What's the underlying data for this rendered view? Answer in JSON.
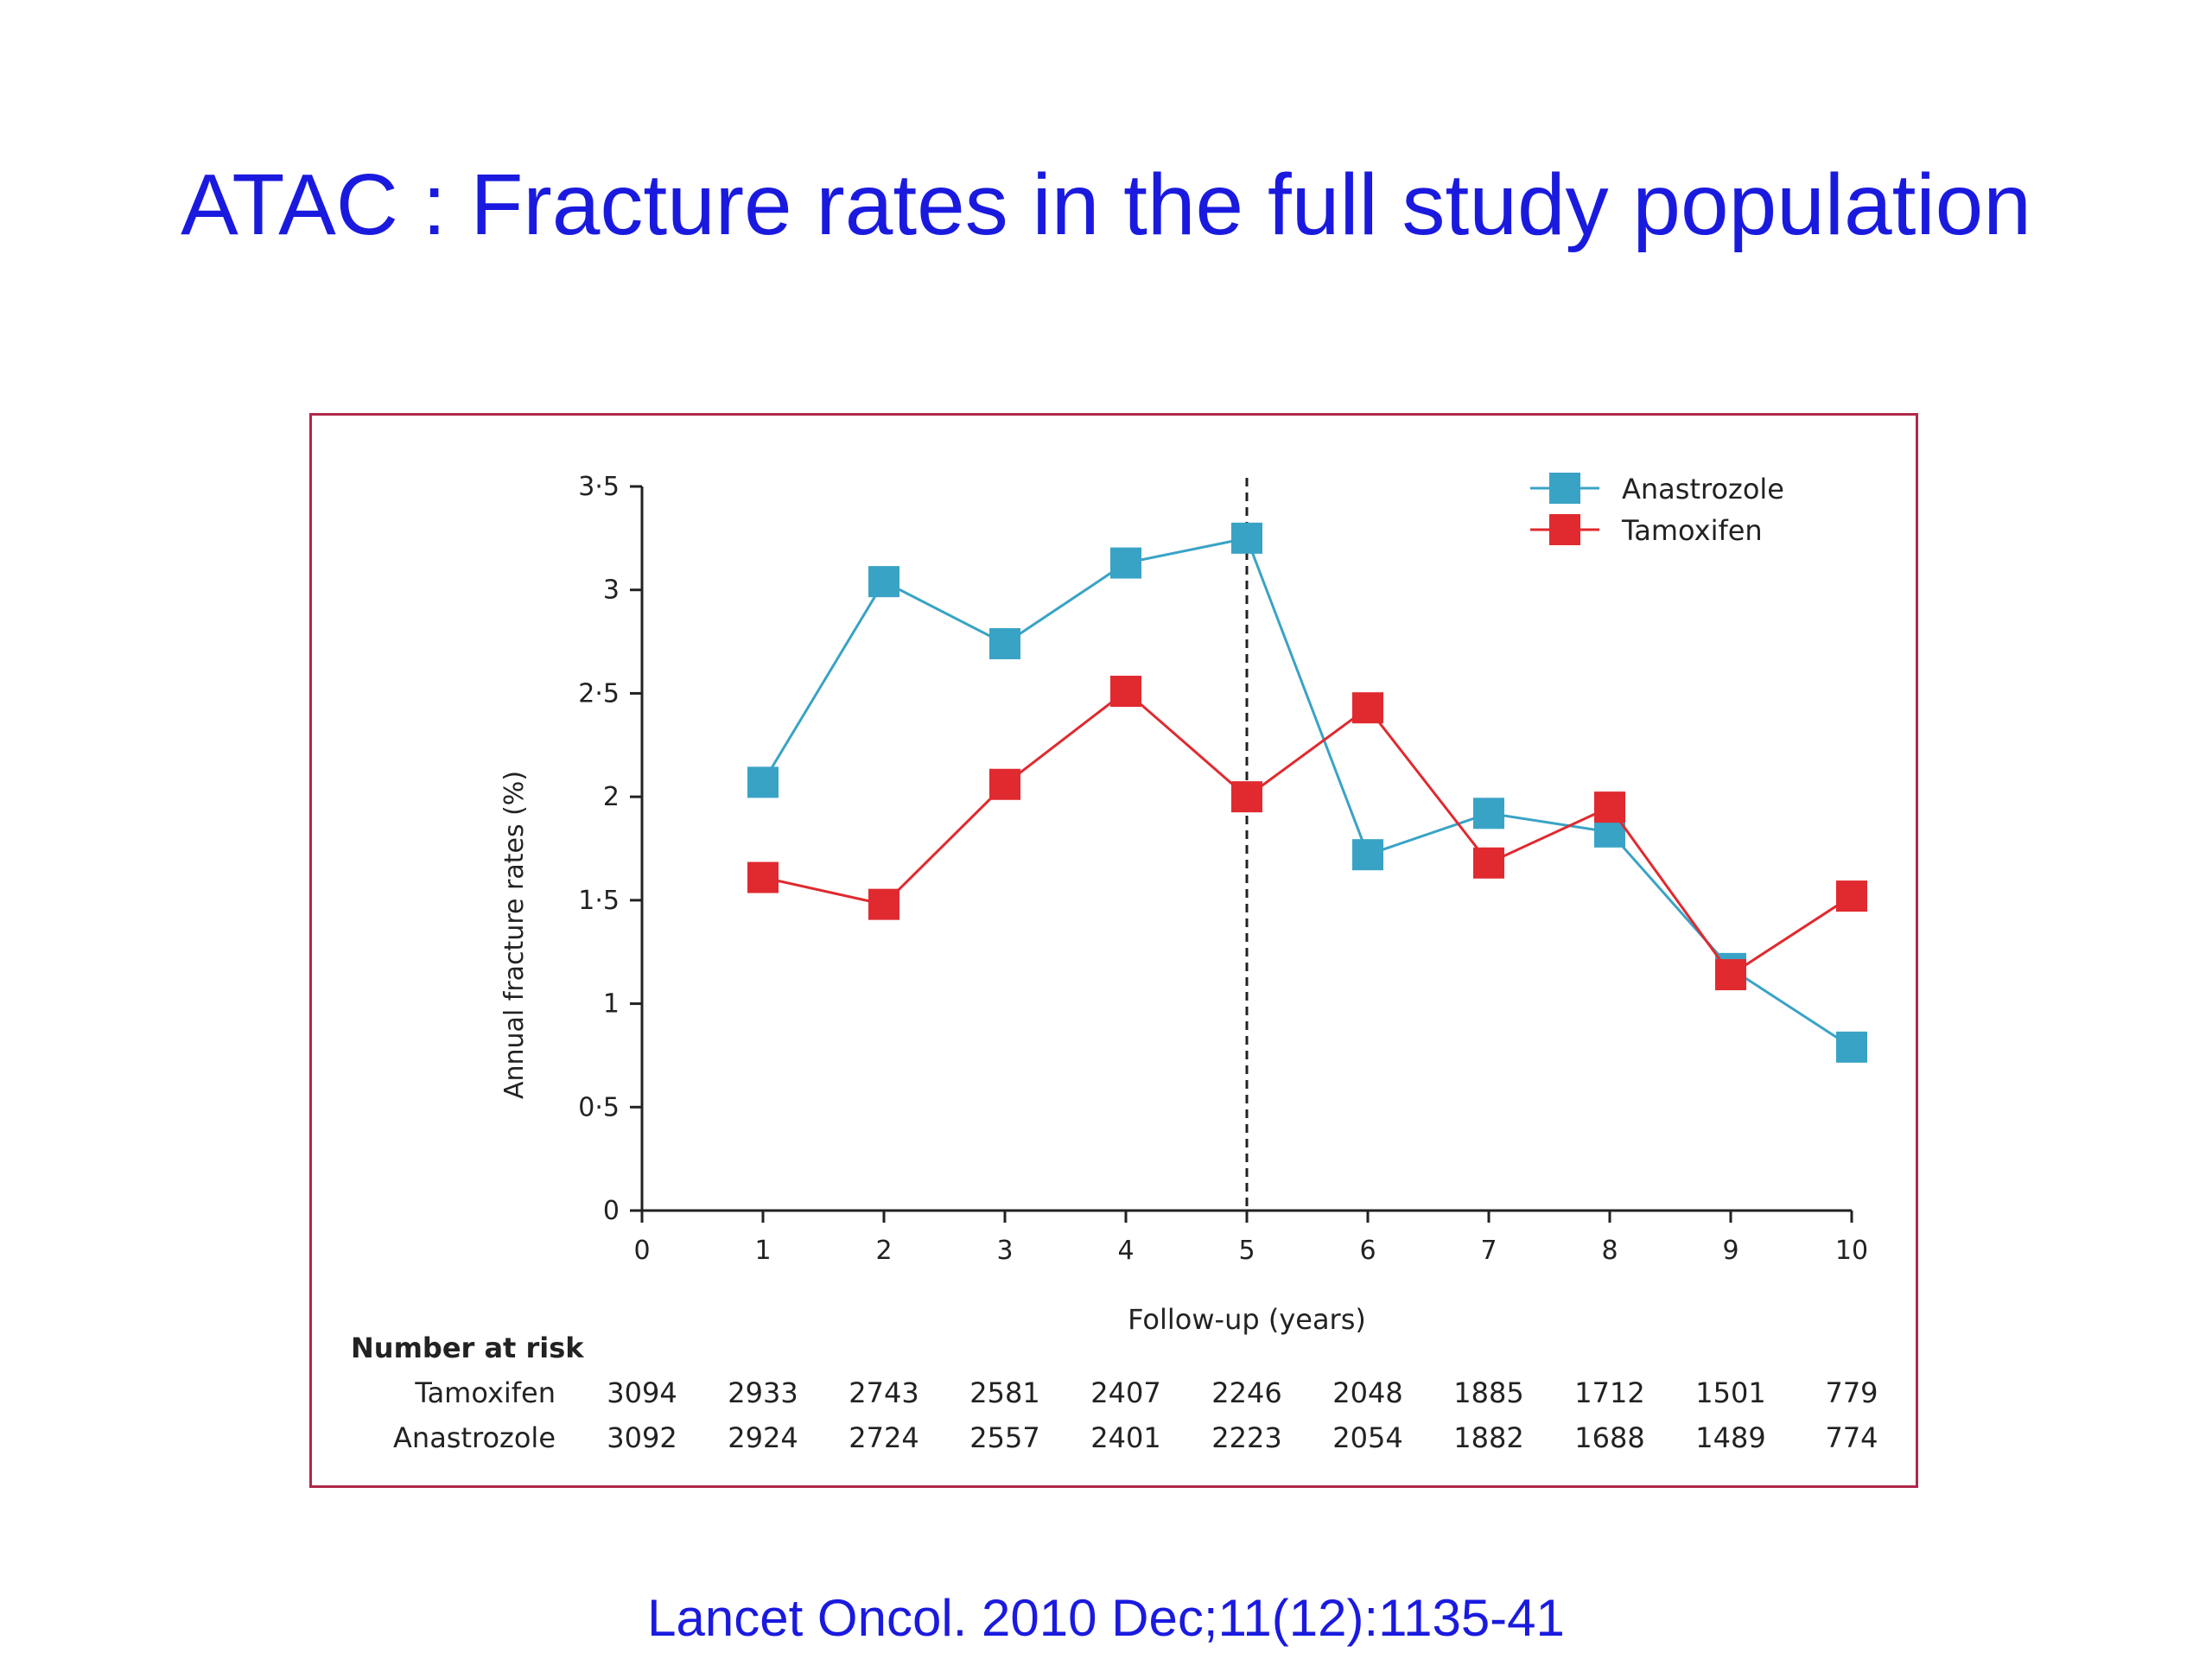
{
  "slide": {
    "title": "ATAC : Fracture rates in the full study population",
    "citation": "Lancet Oncol. 2010 Dec;11(12):1135-41"
  },
  "colors": {
    "title": "#1a1adf",
    "frame": "#b0284a",
    "anastrozole": "#39a3c6",
    "tamoxifen": "#e02a2f"
  },
  "chart_data": {
    "type": "line",
    "xlabel": "Follow-up (years)",
    "ylabel": "Annual fracture rates (%)",
    "xlim": [
      0,
      10
    ],
    "ylim": [
      0,
      3.5
    ],
    "x_ticks": [
      0,
      1,
      2,
      3,
      4,
      5,
      6,
      7,
      8,
      9,
      10
    ],
    "x_tick_labels": [
      "0",
      "1",
      "2",
      "3",
      "4",
      "5",
      "6",
      "7",
      "8",
      "9",
      "10"
    ],
    "y_ticks": [
      0,
      0.5,
      1,
      1.5,
      2,
      2.5,
      3,
      3.5
    ],
    "y_tick_labels": [
      "0",
      "0·5",
      "1",
      "1·5",
      "2",
      "2·5",
      "3",
      "3·5"
    ],
    "grid": false,
    "legend_position": "top-right",
    "reference_line_x": 5,
    "series": [
      {
        "name": "Anastrozole",
        "color": "#39a3c6",
        "marker": "square",
        "x": [
          1,
          2,
          3,
          4,
          5,
          6,
          7,
          8,
          9,
          10
        ],
        "values": [
          2.07,
          3.04,
          2.74,
          3.13,
          3.25,
          1.72,
          1.92,
          1.83,
          1.17,
          0.79
        ]
      },
      {
        "name": "Tamoxifen",
        "color": "#e02a2f",
        "marker": "square",
        "x": [
          1,
          2,
          3,
          4,
          5,
          6,
          7,
          8,
          9,
          10
        ],
        "values": [
          1.61,
          1.48,
          2.06,
          2.51,
          2.0,
          2.43,
          1.68,
          1.95,
          1.14,
          1.52
        ]
      }
    ],
    "risk_table": {
      "title": "Number at risk",
      "rows": [
        {
          "label": "Tamoxifen",
          "values": [
            "3094",
            "2933",
            "2743",
            "2581",
            "2407",
            "2246",
            "2048",
            "1885",
            "1712",
            "1501",
            "779"
          ]
        },
        {
          "label": "Anastrozole",
          "values": [
            "3092",
            "2924",
            "2724",
            "2557",
            "2401",
            "2223",
            "2054",
            "1882",
            "1688",
            "1489",
            "774"
          ]
        }
      ]
    }
  }
}
